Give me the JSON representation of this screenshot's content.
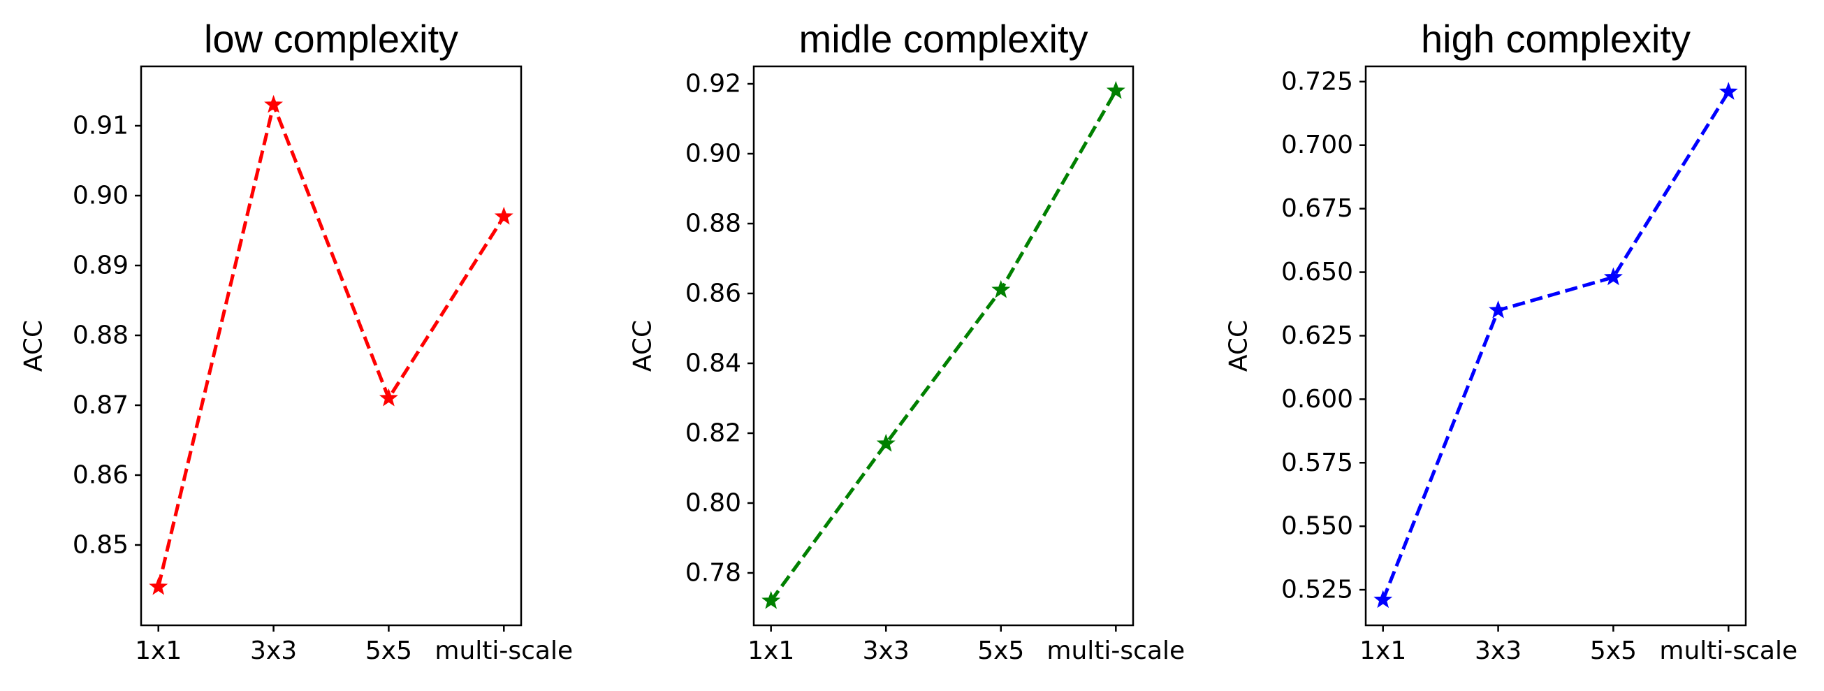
{
  "chart_data": [
    {
      "type": "line",
      "title": "low complexity",
      "xlabel": "",
      "ylabel": "ACC",
      "categories": [
        "1x1",
        "3x3",
        "5x5",
        "multi-scale"
      ],
      "series": [
        {
          "values": [
            0.844,
            0.913,
            0.871,
            0.897
          ],
          "color": "#ff0000",
          "linestyle": "dashed",
          "marker": "star"
        }
      ],
      "ylim": [
        0.8385,
        0.9185
      ],
      "yticks": [
        0.85,
        0.86,
        0.87,
        0.88,
        0.89,
        0.9,
        0.91
      ],
      "ytick_labels": [
        "0.85",
        "0.86",
        "0.87",
        "0.88",
        "0.89",
        "0.90",
        "0.91"
      ],
      "grid": false
    },
    {
      "type": "line",
      "title": "midle complexity",
      "xlabel": "",
      "ylabel": "ACC",
      "categories": [
        "1x1",
        "3x3",
        "5x5",
        "multi-scale"
      ],
      "series": [
        {
          "values": [
            0.772,
            0.817,
            0.861,
            0.918
          ],
          "color": "#008000",
          "linestyle": "dashed",
          "marker": "star"
        }
      ],
      "ylim": [
        0.765,
        0.925
      ],
      "yticks": [
        0.78,
        0.8,
        0.82,
        0.84,
        0.86,
        0.88,
        0.9,
        0.92
      ],
      "ytick_labels": [
        "0.78",
        "0.80",
        "0.82",
        "0.84",
        "0.86",
        "0.88",
        "0.90",
        "0.92"
      ],
      "grid": false
    },
    {
      "type": "line",
      "title": "high complexity",
      "xlabel": "",
      "ylabel": "ACC",
      "categories": [
        "1x1",
        "3x3",
        "5x5",
        "multi-scale"
      ],
      "series": [
        {
          "values": [
            0.521,
            0.635,
            0.648,
            0.721
          ],
          "color": "#0000ff",
          "linestyle": "dashed",
          "marker": "star"
        }
      ],
      "ylim": [
        0.511,
        0.731
      ],
      "yticks": [
        0.525,
        0.55,
        0.575,
        0.6,
        0.625,
        0.65,
        0.675,
        0.7,
        0.725
      ],
      "ytick_labels": [
        "0.525",
        "0.550",
        "0.575",
        "0.600",
        "0.625",
        "0.650",
        "0.675",
        "0.700",
        "0.725"
      ],
      "grid": false
    }
  ]
}
